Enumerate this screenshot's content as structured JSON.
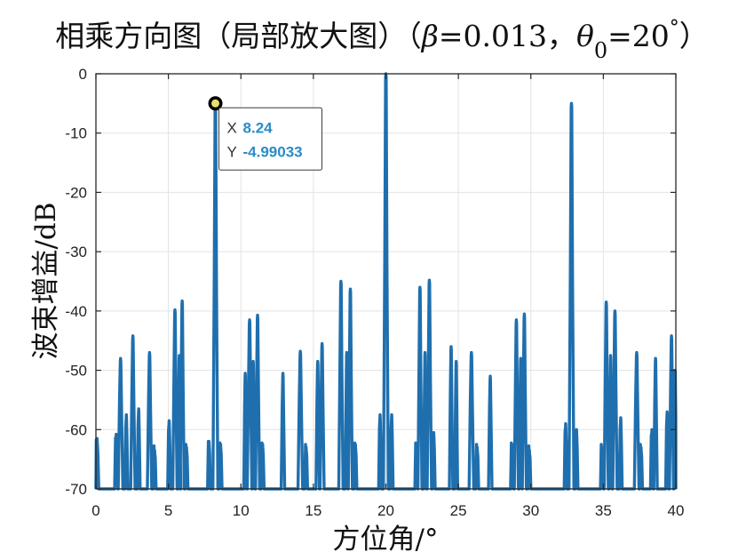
{
  "chart_data": {
    "type": "line",
    "title": "相乘方向图（局部放大图）（",
    "title_beta_symbol": "β",
    "title_beta_value": "=0.013，",
    "title_theta_symbol": "θ",
    "title_theta_sub": "0",
    "title_theta_value": "=20",
    "title_degree": "°",
    "title_close": "）",
    "xlabel": "方位角/°",
    "ylabel": "波束增益/dB",
    "xlim": [
      0,
      40
    ],
    "ylim": [
      -70,
      0
    ],
    "xticks": [
      0,
      5,
      10,
      15,
      20,
      25,
      30,
      35,
      40
    ],
    "yticks": [
      0,
      -10,
      -20,
      -30,
      -40,
      -50,
      -60,
      -70
    ],
    "grid": true,
    "series_color": "#1f6fae",
    "lobes": [
      {
        "center": 0.08,
        "peak": -61.5,
        "width": 0.24
      },
      {
        "center": 1.4,
        "peak": -60.8,
        "width": 0.22
      },
      {
        "center": 1.7,
        "peak": -48.0,
        "width": 0.32
      },
      {
        "center": 2.1,
        "peak": -57.5,
        "width": 0.2
      },
      {
        "center": 2.55,
        "peak": -44.2,
        "width": 0.3
      },
      {
        "center": 2.95,
        "peak": -56.5,
        "width": 0.2
      },
      {
        "center": 3.7,
        "peak": -47.0,
        "width": 0.3
      },
      {
        "center": 4.05,
        "peak": -63.5,
        "width": 0.2
      },
      {
        "center": 5.05,
        "peak": -58.5,
        "width": 0.2
      },
      {
        "center": 5.45,
        "peak": -39.8,
        "width": 0.3
      },
      {
        "center": 5.75,
        "peak": -47.5,
        "width": 0.2
      },
      {
        "center": 5.95,
        "peak": -38.3,
        "width": 0.28
      },
      {
        "center": 6.25,
        "peak": -63.0,
        "width": 0.2
      },
      {
        "center": 7.8,
        "peak": -62.0,
        "width": 0.2
      },
      {
        "center": 8.24,
        "peak": -4.99033,
        "width": 0.34
      },
      {
        "center": 8.6,
        "peak": -62.5,
        "width": 0.2
      },
      {
        "center": 10.3,
        "peak": -50.5,
        "width": 0.2
      },
      {
        "center": 10.6,
        "peak": -41.5,
        "width": 0.32
      },
      {
        "center": 10.85,
        "peak": -48.5,
        "width": 0.2
      },
      {
        "center": 11.15,
        "peak": -40.7,
        "width": 0.28
      },
      {
        "center": 11.5,
        "peak": -62.5,
        "width": 0.2
      },
      {
        "center": 12.9,
        "peak": -50.5,
        "width": 0.24
      },
      {
        "center": 14.1,
        "peak": -46.8,
        "width": 0.32
      },
      {
        "center": 14.5,
        "peak": -63.0,
        "width": 0.2
      },
      {
        "center": 15.3,
        "peak": -48.5,
        "width": 0.24
      },
      {
        "center": 15.6,
        "peak": -45.5,
        "width": 0.28
      },
      {
        "center": 16.9,
        "peak": -35.0,
        "width": 0.3
      },
      {
        "center": 17.3,
        "peak": -47.0,
        "width": 0.2
      },
      {
        "center": 17.55,
        "peak": -36.3,
        "width": 0.28
      },
      {
        "center": 17.9,
        "peak": -62.5,
        "width": 0.2
      },
      {
        "center": 19.6,
        "peak": -57.5,
        "width": 0.2
      },
      {
        "center": 20.0,
        "peak": 0.0,
        "width": 0.34
      },
      {
        "center": 20.4,
        "peak": -57.5,
        "width": 0.2
      },
      {
        "center": 22.1,
        "peak": -62.5,
        "width": 0.2
      },
      {
        "center": 22.35,
        "peak": -36.0,
        "width": 0.28
      },
      {
        "center": 22.7,
        "peak": -47.0,
        "width": 0.2
      },
      {
        "center": 23.0,
        "peak": -34.8,
        "width": 0.3
      },
      {
        "center": 23.3,
        "peak": -60.5,
        "width": 0.2
      },
      {
        "center": 24.5,
        "peak": -46.0,
        "width": 0.24
      },
      {
        "center": 24.85,
        "peak": -48.5,
        "width": 0.2
      },
      {
        "center": 25.9,
        "peak": -47.0,
        "width": 0.32
      },
      {
        "center": 26.3,
        "peak": -63.0,
        "width": 0.2
      },
      {
        "center": 27.2,
        "peak": -51.0,
        "width": 0.24
      },
      {
        "center": 28.7,
        "peak": -62.5,
        "width": 0.2
      },
      {
        "center": 29.0,
        "peak": -41.5,
        "width": 0.28
      },
      {
        "center": 29.3,
        "peak": -48.0,
        "width": 0.2
      },
      {
        "center": 29.55,
        "peak": -40.5,
        "width": 0.28
      },
      {
        "center": 29.9,
        "peak": -63.5,
        "width": 0.2
      },
      {
        "center": 32.4,
        "peak": -59.0,
        "width": 0.2
      },
      {
        "center": 32.8,
        "peak": -5.0,
        "width": 0.34
      },
      {
        "center": 33.15,
        "peak": -60.0,
        "width": 0.2
      },
      {
        "center": 34.9,
        "peak": -63.0,
        "width": 0.2
      },
      {
        "center": 35.2,
        "peak": -38.5,
        "width": 0.28
      },
      {
        "center": 35.5,
        "peak": -47.5,
        "width": 0.2
      },
      {
        "center": 35.8,
        "peak": -40.0,
        "width": 0.3
      },
      {
        "center": 36.2,
        "peak": -58.0,
        "width": 0.2
      },
      {
        "center": 37.3,
        "peak": -47.0,
        "width": 0.32
      },
      {
        "center": 37.6,
        "peak": -63.0,
        "width": 0.2
      },
      {
        "center": 38.35,
        "peak": -60.0,
        "width": 0.2
      },
      {
        "center": 38.6,
        "peak": -48.0,
        "width": 0.24
      },
      {
        "center": 39.4,
        "peak": -57.0,
        "width": 0.2
      },
      {
        "center": 39.7,
        "peak": -44.2,
        "width": 0.28
      },
      {
        "center": 39.95,
        "peak": -50.0,
        "width": 0.2
      }
    ],
    "datatip": {
      "x_key": "X",
      "x": 8.24,
      "x_text": "8.24",
      "y_key": "Y",
      "y": -4.99033,
      "y_text": "-4.99033",
      "color": "#2a8cc8"
    }
  }
}
